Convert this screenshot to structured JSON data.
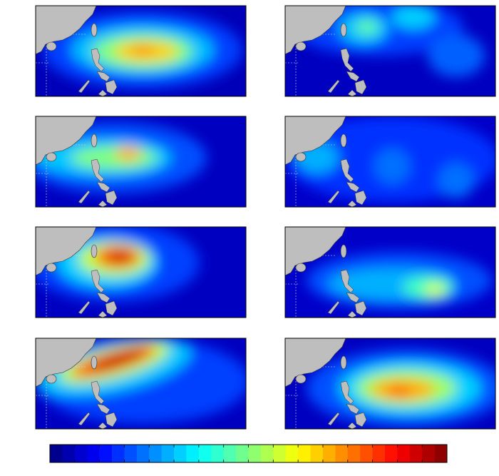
{
  "colorbar": {
    "colors": [
      "#00008f",
      "#0000af",
      "#0000cf",
      "#0000ef",
      "#0010ff",
      "#0030ff",
      "#0050ff",
      "#0070ff",
      "#008fff",
      "#00afff",
      "#00cfff",
      "#00efff",
      "#10ffef",
      "#30ffcf",
      "#50ffaf",
      "#70ff8f",
      "#8fff70",
      "#afff50",
      "#cfff30",
      "#efff10",
      "#ffef00",
      "#ffcf00",
      "#ffaf00",
      "#ff8f00",
      "#ff7000",
      "#ff5000",
      "#ff3000",
      "#ff1000",
      "#ef0000",
      "#cf0000",
      "#af0000",
      "#8f0000"
    ]
  }
}
